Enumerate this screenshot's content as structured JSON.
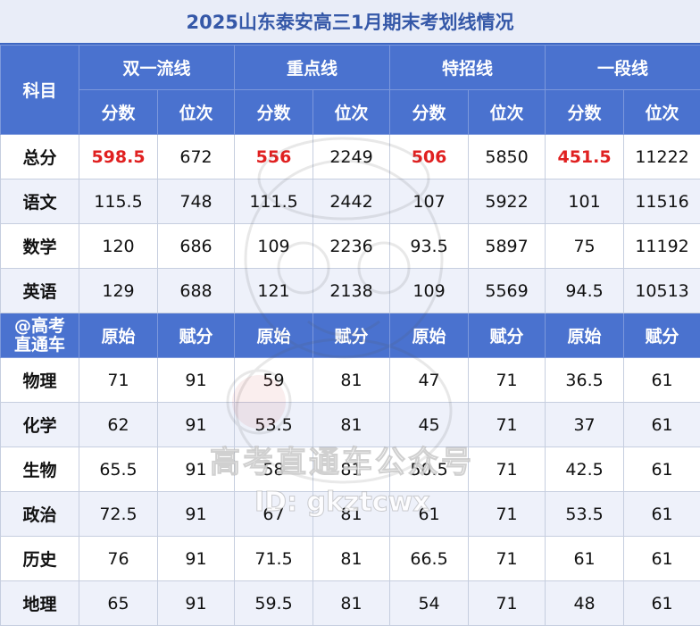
{
  "title": "2025山东泰安高三1月期末考划线情况",
  "header": {
    "subject_col": "科目",
    "groups": [
      "双一流线",
      "重点线",
      "特招线",
      "一段线"
    ],
    "sub1": [
      "分数",
      "位次",
      "分数",
      "位次",
      "分数",
      "位次",
      "分数",
      "位次"
    ],
    "sub2_logo": [
      "@高考",
      "直通车"
    ],
    "sub2": [
      "原始",
      "赋分",
      "原始",
      "赋分",
      "原始",
      "赋分",
      "原始",
      "赋分"
    ]
  },
  "rows_top": [
    {
      "subject": "总分",
      "values": [
        "598.5",
        "672",
        "556",
        "2249",
        "506",
        "5850",
        "451.5",
        "11222"
      ]
    },
    {
      "subject": "语文",
      "values": [
        "115.5",
        "748",
        "111.5",
        "2442",
        "107",
        "5922",
        "101",
        "11516"
      ]
    },
    {
      "subject": "数学",
      "values": [
        "120",
        "686",
        "109",
        "2236",
        "93.5",
        "5897",
        "75",
        "11192"
      ]
    },
    {
      "subject": "英语",
      "values": [
        "129",
        "688",
        "121",
        "2138",
        "109",
        "5569",
        "94.5",
        "10513"
      ]
    }
  ],
  "rows_bottom": [
    {
      "subject": "物理",
      "values": [
        "71",
        "91",
        "59",
        "81",
        "47",
        "71",
        "36.5",
        "61"
      ]
    },
    {
      "subject": "化学",
      "values": [
        "62",
        "91",
        "53.5",
        "81",
        "45",
        "71",
        "37",
        "61"
      ]
    },
    {
      "subject": "生物",
      "values": [
        "65.5",
        "91",
        "58",
        "81",
        "50.5",
        "71",
        "42.5",
        "61"
      ]
    },
    {
      "subject": "政治",
      "values": [
        "72.5",
        "91",
        "67",
        "81",
        "61",
        "71",
        "53.5",
        "61"
      ]
    },
    {
      "subject": "历史",
      "values": [
        "76",
        "91",
        "71.5",
        "81",
        "66.5",
        "71",
        "61",
        "61"
      ]
    },
    {
      "subject": "地理",
      "values": [
        "65",
        "91",
        "59.5",
        "81",
        "54",
        "71",
        "48",
        "61"
      ]
    }
  ],
  "watermark": {
    "line1": "高考直通车公众号",
    "line2": "ID: gkztcwx"
  },
  "colors": {
    "header_bg": "#4a72cf",
    "title_text": "#3558a8",
    "highlight": "#e02020",
    "alt_row": "#eef1fa"
  }
}
